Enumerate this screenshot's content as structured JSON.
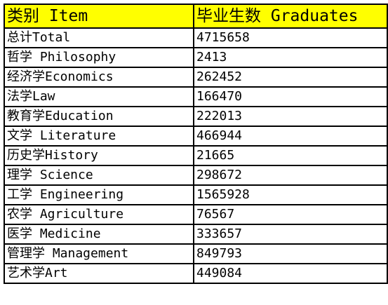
{
  "table": {
    "header": {
      "category": "类别 Item",
      "graduates": "毕业生数 Graduates"
    },
    "rows": [
      {
        "category": "总计Total",
        "graduates": "4715658"
      },
      {
        "category": "哲学 Philosophy",
        "graduates": "2413"
      },
      {
        "category": "经济学Economics",
        "graduates": "262452"
      },
      {
        "category": "法学Law",
        "graduates": "166470"
      },
      {
        "category": "教育学Education",
        "graduates": "222013"
      },
      {
        "category": "文学 Literature",
        "graduates": "466944"
      },
      {
        "category": "历史学History",
        "graduates": "21665"
      },
      {
        "category": "理学 Science",
        "graduates": "298672"
      },
      {
        "category": "工学 Engineering",
        "graduates": "1565928"
      },
      {
        "category": "农学 Agriculture",
        "graduates": "76567"
      },
      {
        "category": "医学 Medicine",
        "graduates": "333657"
      },
      {
        "category": "管理学 Management",
        "graduates": "849793"
      },
      {
        "category": "艺术学Art",
        "graduates": "449084"
      }
    ],
    "header_color": "#ffff00"
  }
}
